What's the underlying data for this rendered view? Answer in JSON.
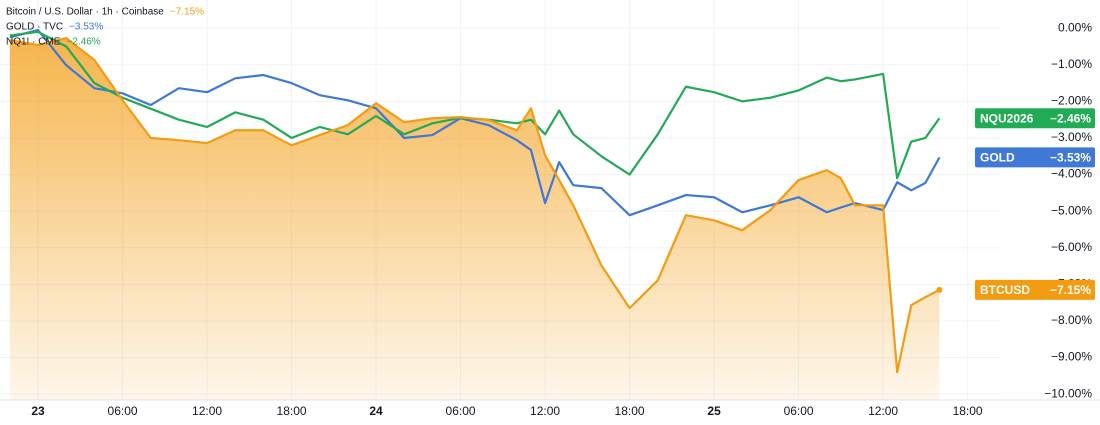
{
  "chart_data": {
    "type": "line",
    "x": [
      -2,
      0,
      2,
      4,
      6,
      8,
      10,
      12,
      14,
      16,
      18,
      20,
      22,
      24,
      26,
      28,
      30,
      32,
      34,
      35,
      36,
      37,
      38,
      40,
      42,
      44,
      46,
      48,
      50,
      52,
      54,
      56,
      57,
      58,
      60,
      61,
      62,
      63,
      64
    ],
    "series": [
      {
        "name": "Bitcoin / U.S. Dollar · 1h · Coinbase",
        "symbol": "BTCUSD",
        "last_label": "−7.15%",
        "color": "#f39c12",
        "area": true,
        "values": [
          -0.33,
          -0.46,
          -0.27,
          -0.87,
          -1.97,
          -3.0,
          -3.06,
          -3.14,
          -2.79,
          -2.79,
          -3.2,
          -2.92,
          -2.65,
          -2.05,
          -2.57,
          -2.46,
          -2.43,
          -2.51,
          -2.79,
          -2.19,
          -3.47,
          -4.15,
          -4.84,
          -6.48,
          -7.65,
          -6.89,
          -5.11,
          -5.25,
          -5.52,
          -4.97,
          -4.15,
          -3.88,
          -4.1,
          -4.84,
          -4.84,
          -9.4,
          -7.57,
          -7.35,
          -7.15
        ]
      },
      {
        "name": "GOLD · TVC",
        "symbol": "GOLD",
        "last_label": "−3.53%",
        "color": "#3f78d6",
        "area": false,
        "values": [
          -0.25,
          -0.05,
          -1.01,
          -1.64,
          -1.78,
          -2.1,
          -1.64,
          -1.75,
          -1.37,
          -1.28,
          -1.5,
          -1.83,
          -1.97,
          -2.19,
          -3.0,
          -2.92,
          -2.46,
          -2.65,
          -3.06,
          -3.33,
          -4.78,
          -3.66,
          -4.29,
          -4.37,
          -5.11,
          -4.84,
          -4.56,
          -4.62,
          -5.03,
          -4.84,
          -4.62,
          -5.03,
          -4.9,
          -4.78,
          -4.97,
          -4.21,
          -4.43,
          -4.23,
          -3.53
        ]
      },
      {
        "name": "NQ1! · CME",
        "symbol": "NQU2026",
        "last_label": "−2.46%",
        "color": "#22ab55",
        "area": false,
        "values": [
          -0.2,
          -0.1,
          -0.5,
          -1.5,
          -1.9,
          -2.2,
          -2.5,
          -2.7,
          -2.3,
          -2.5,
          -3.0,
          -2.7,
          -2.9,
          -2.4,
          -2.9,
          -2.6,
          -2.45,
          -2.5,
          -2.6,
          -2.5,
          -2.9,
          -2.25,
          -2.9,
          -3.5,
          -4.0,
          -2.9,
          -1.6,
          -1.75,
          -2.0,
          -1.9,
          -1.7,
          -1.35,
          -1.45,
          -1.4,
          -1.25,
          -4.1,
          -3.1,
          -3.0,
          -2.46
        ]
      }
    ],
    "xlim": [
      -2.7,
      68.3
    ],
    "xticks": [
      {
        "value": 0,
        "label": "23"
      },
      {
        "value": 6,
        "label": "06:00"
      },
      {
        "value": 12,
        "label": "12:00"
      },
      {
        "value": 18,
        "label": "18:00"
      },
      {
        "value": 24,
        "label": "24"
      },
      {
        "value": 30,
        "label": "06:00"
      },
      {
        "value": 36,
        "label": "12:00"
      },
      {
        "value": 42,
        "label": "18:00"
      },
      {
        "value": 48,
        "label": "25"
      },
      {
        "value": 54,
        "label": "06:00"
      },
      {
        "value": 60,
        "label": "12:00"
      },
      {
        "value": 66,
        "label": "18:00"
      }
    ],
    "ylim": [
      -10.16,
      0.77
    ],
    "yticks": [
      {
        "value": 0,
        "label": "0.00%"
      },
      {
        "value": -1,
        "label": "−1.00%"
      },
      {
        "value": -2,
        "label": "−2.00%"
      },
      {
        "value": -3,
        "label": "−3.00%"
      },
      {
        "value": -4,
        "label": "−4.00%"
      },
      {
        "value": -5,
        "label": "−5.00%"
      },
      {
        "value": -6,
        "label": "−6.00%"
      },
      {
        "value": -7,
        "label": "−7.00%"
      },
      {
        "value": -8,
        "label": "−8.00%"
      },
      {
        "value": -9,
        "label": "−9.00%"
      },
      {
        "value": -10,
        "label": "−10.00%"
      }
    ],
    "grid": true
  }
}
